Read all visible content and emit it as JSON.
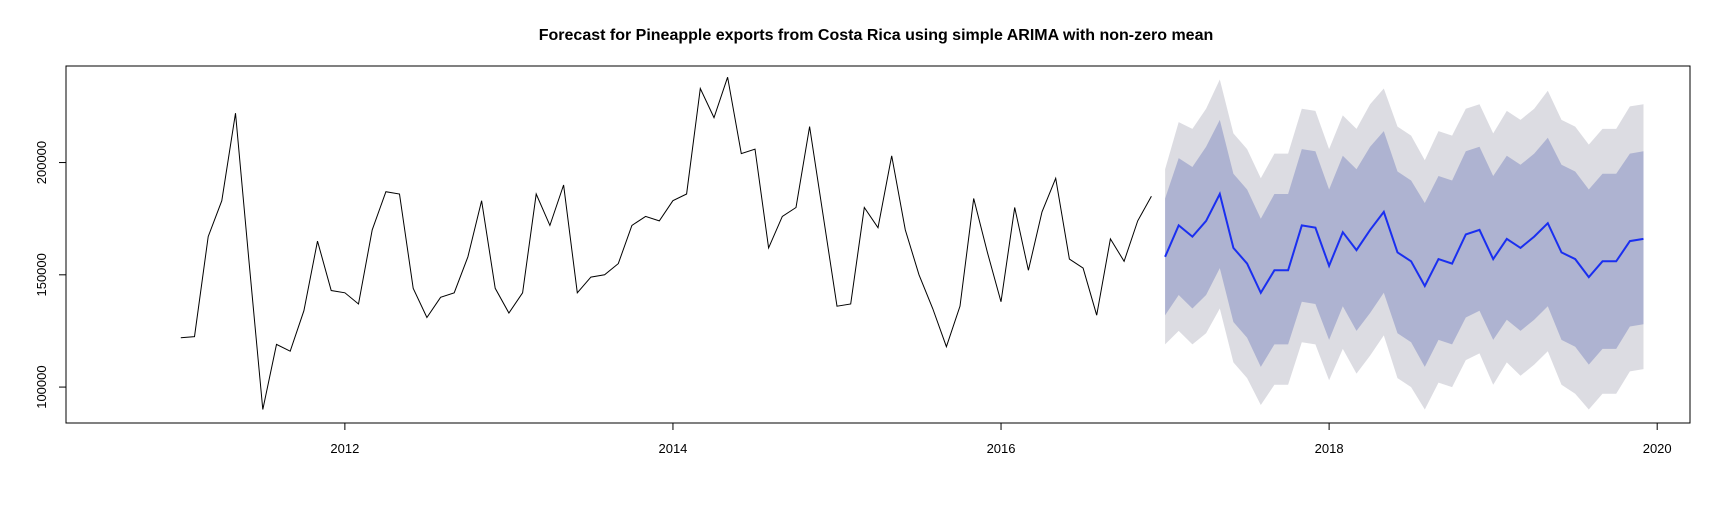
{
  "chart_data": {
    "type": "line",
    "title": "Forecast for Pineapple exports from Costa Rica using simple ARIMA with non-zero mean",
    "xlabel": "",
    "ylabel": "",
    "xlim": [
      2010.3,
      2020.2
    ],
    "ylim": [
      84000,
      243000
    ],
    "x_ticks": [
      2012,
      2014,
      2016,
      2018,
      2020
    ],
    "x_tick_labels": [
      "2012",
      "2014",
      "2016",
      "2018",
      "2020"
    ],
    "y_ticks": [
      100000,
      150000,
      200000
    ],
    "y_tick_labels": [
      "100000",
      "150000",
      "200000"
    ],
    "grid": false,
    "legend": "none",
    "history": {
      "start": 2011.0,
      "step": 0.08333333,
      "values": [
        122000,
        122500,
        167000,
        183000,
        222000,
        155000,
        90000,
        119000,
        116000,
        134000,
        165000,
        143000,
        142000,
        137000,
        170000,
        187000,
        186000,
        144000,
        131000,
        140000,
        142000,
        158000,
        183000,
        144000,
        133000,
        142000,
        186000,
        172000,
        190000,
        142000,
        149000,
        150000,
        155000,
        172000,
        176000,
        174000,
        183000,
        186000,
        233000,
        220000,
        238000,
        204000,
        206000,
        162000,
        176000,
        180000,
        216000,
        176000,
        136000,
        137000,
        180000,
        171000,
        203000,
        170000,
        150000,
        135000,
        118000,
        136000,
        184000,
        160000,
        138000,
        180000,
        152000,
        178000,
        193000,
        157000,
        153000,
        132000,
        166000,
        156000,
        174000,
        185000
      ]
    },
    "forecast": {
      "start": 2017.0,
      "step": 0.08333333,
      "mean": [
        158000,
        172000,
        167000,
        174000,
        186000,
        162000,
        155000,
        142000,
        152000,
        152000,
        172000,
        171000,
        154000,
        169000,
        161000,
        170000,
        178000,
        160000,
        156000,
        145000,
        157000,
        155000,
        168000,
        170000,
        157000,
        166000,
        162000,
        167000,
        173000,
        160000,
        157000,
        149000,
        156000,
        156000,
        165000,
        166000
      ],
      "lo80": [
        132000,
        141000,
        135000,
        141000,
        153000,
        129000,
        122000,
        109000,
        119000,
        119000,
        138000,
        137000,
        121000,
        136000,
        125000,
        133000,
        142000,
        124000,
        120000,
        109000,
        121000,
        119000,
        131000,
        134000,
        121000,
        130000,
        125000,
        130000,
        136000,
        121000,
        118000,
        110000,
        117000,
        117000,
        127000,
        128000
      ],
      "hi80": [
        184000,
        202000,
        198000,
        207000,
        219000,
        195000,
        188000,
        175000,
        186000,
        186000,
        206000,
        205000,
        188000,
        203000,
        197000,
        207000,
        214000,
        196000,
        192000,
        182000,
        194000,
        192000,
        205000,
        207000,
        194000,
        203000,
        199000,
        204000,
        211000,
        199000,
        196000,
        188000,
        195000,
        195000,
        204000,
        205000
      ],
      "lo95": [
        119000,
        125000,
        119000,
        124000,
        135000,
        111000,
        104000,
        92000,
        101000,
        101000,
        120000,
        119000,
        103000,
        117000,
        106000,
        114000,
        123000,
        104000,
        100000,
        90000,
        102000,
        100000,
        112000,
        115000,
        101000,
        111000,
        105000,
        110000,
        116000,
        101000,
        97000,
        90000,
        97000,
        97000,
        107000,
        108000
      ],
      "hi95": [
        197000,
        218000,
        215000,
        224000,
        237000,
        213000,
        206000,
        193000,
        204000,
        204000,
        224000,
        223000,
        206000,
        221000,
        215000,
        226000,
        233000,
        216000,
        212000,
        201000,
        214000,
        212000,
        224000,
        226000,
        213000,
        223000,
        219000,
        224000,
        232000,
        219000,
        216000,
        208000,
        215000,
        215000,
        225000,
        226000
      ]
    },
    "colors": {
      "history_line": "#000000",
      "forecast_line": "#1a2ff0",
      "band_95": "#dcdce2",
      "band_80": "#aeb3d1"
    }
  }
}
